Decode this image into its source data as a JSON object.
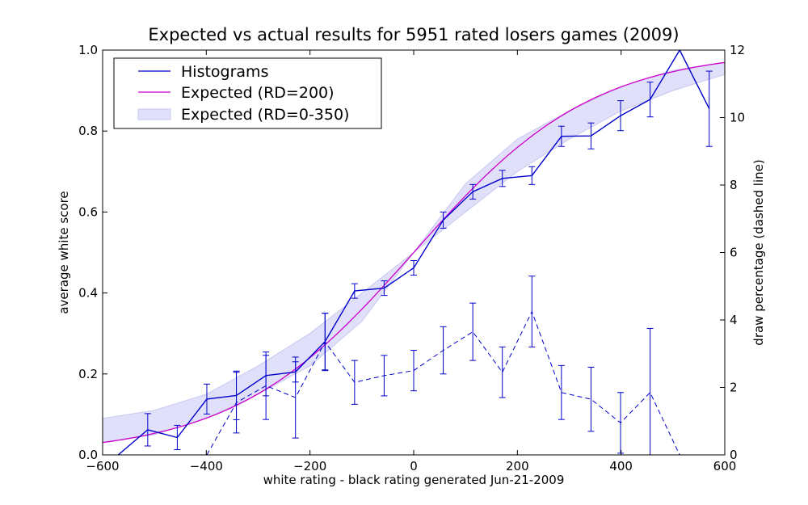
{
  "chart_data": {
    "type": "line",
    "title": "Expected vs actual results for 5951 rated losers games (2009)",
    "xlabel": "white rating - black rating     generated Jun-21-2009",
    "ylabel": "average white score",
    "y2label": "draw percentage (dashed line)",
    "xlim": [
      -600,
      600
    ],
    "ylim": [
      0.0,
      1.0
    ],
    "y2lim": [
      0,
      12
    ],
    "xticks": [
      "−600",
      "−400",
      "−200",
      "0",
      "200",
      "400",
      "600"
    ],
    "yticks": [
      "0.0",
      "0.2",
      "0.4",
      "0.6",
      "0.8",
      "1.0"
    ],
    "y2ticks": [
      "0",
      "2",
      "4",
      "6",
      "8",
      "10",
      "12"
    ],
    "legend_position": "top-left",
    "grid": false,
    "series": [
      {
        "name": "Histograms",
        "color": "#0000cc",
        "x": [
          -570,
          -513,
          -456,
          -399,
          -342,
          -285,
          -228,
          -171,
          -114,
          -57,
          0,
          57,
          114,
          171,
          228,
          285,
          342,
          399,
          456,
          513,
          570
        ],
        "values": [
          0.0,
          0.062,
          0.043,
          0.138,
          0.147,
          0.196,
          0.205,
          0.28,
          0.405,
          0.412,
          0.462,
          0.58,
          0.65,
          0.683,
          0.69,
          0.787,
          0.788,
          0.838,
          0.878,
          1.0,
          0.855
        ],
        "err": [
          0.0,
          0.04,
          0.03,
          0.037,
          0.06,
          0.05,
          0.025,
          0.07,
          0.018,
          0.018,
          0.018,
          0.02,
          0.018,
          0.02,
          0.022,
          0.025,
          0.032,
          0.037,
          0.043,
          0.0,
          0.093
        ]
      },
      {
        "name": "Expected (RD=200)",
        "color": "#cc00cc",
        "function": "1/(1+10^(-x/400))",
        "x": [
          -600,
          -500,
          -400,
          -300,
          -200,
          -100,
          0,
          100,
          200,
          300,
          400,
          500,
          600
        ],
        "values": [
          0.053,
          0.081,
          0.12,
          0.177,
          0.256,
          0.36,
          0.5,
          0.64,
          0.744,
          0.823,
          0.88,
          0.919,
          0.947
        ]
      },
      {
        "name": "Expected (RD=0-350)",
        "color": "#e0e0fa",
        "type": "band",
        "x": [
          -600,
          -500,
          -400,
          -300,
          -200,
          -100,
          0,
          100,
          200,
          300,
          400,
          500,
          600
        ],
        "lower": [
          0.03,
          0.05,
          0.09,
          0.15,
          0.22,
          0.33,
          0.5,
          0.6,
          0.7,
          0.78,
          0.85,
          0.9,
          0.94
        ],
        "upper": [
          0.09,
          0.11,
          0.15,
          0.22,
          0.3,
          0.4,
          0.5,
          0.67,
          0.78,
          0.85,
          0.91,
          0.95,
          0.97
        ]
      },
      {
        "name": "Draw percentage",
        "color": "#0000cc",
        "dashed": true,
        "axis": "right",
        "x": [
          -570,
          -513,
          -456,
          -399,
          -342,
          -285,
          -228,
          -171,
          -114,
          -57,
          0,
          57,
          114,
          171,
          228,
          285,
          342,
          399,
          456,
          513,
          570
        ],
        "values": [
          0.0,
          0.0,
          0.0,
          0.0,
          1.55,
          2.05,
          1.7,
          3.35,
          2.15,
          2.35,
          2.5,
          3.1,
          3.65,
          2.45,
          4.25,
          1.85,
          1.65,
          0.95,
          1.85,
          0.0,
          0.0
        ],
        "err": [
          0.0,
          0.0,
          0.0,
          0.0,
          0.9,
          1.0,
          1.2,
          0.85,
          0.65,
          0.6,
          0.6,
          0.7,
          0.85,
          0.75,
          1.05,
          0.8,
          0.95,
          0.9,
          1.9,
          0.0,
          0.0
        ]
      }
    ],
    "legend": [
      "Histograms",
      "Expected (RD=200)",
      "Expected (RD=0-350)"
    ]
  }
}
